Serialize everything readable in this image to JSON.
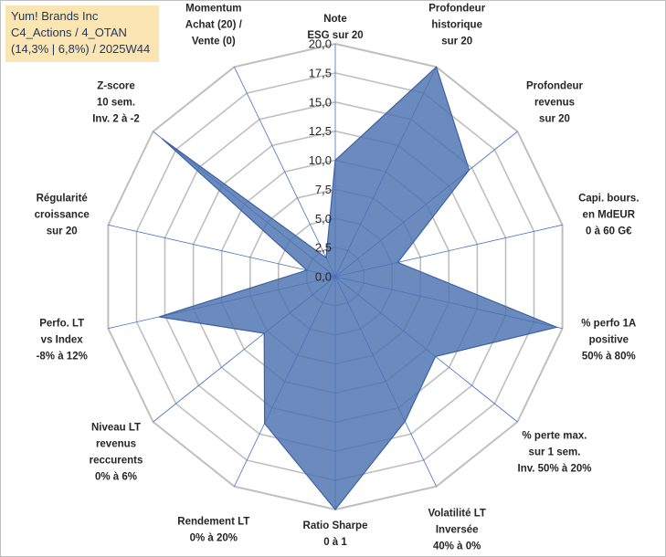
{
  "header": {
    "company": "Yum! Brands Inc",
    "portfolio": "C4_Actions / 4_OTAN",
    "stats": "(14,3% | 6,8%) / 2025W44"
  },
  "colors": {
    "fill": "#4a72b0",
    "stroke": "#3d62a3",
    "grid": "#bfbfbf",
    "spoke": "#4472c4",
    "title_bg": "#fbe5b3"
  },
  "chart_data": {
    "type": "radar",
    "title": "Yum! Brands Inc",
    "r_range": [
      0,
      20
    ],
    "r_ticks": [
      "0,0",
      "2,5",
      "5,0",
      "7,5",
      "10,0",
      "12,5",
      "15,0",
      "17,5",
      "20,0"
    ],
    "axes": [
      [
        "Note",
        "ESG sur 20"
      ],
      [
        "Profondeur",
        "historique",
        "sur 20"
      ],
      [
        "Profondeur",
        "revenus",
        "sur 20"
      ],
      [
        "Capi. bours.",
        "en MdEUR",
        "0 à 60 G€"
      ],
      [
        "% perfo 1A",
        "positive",
        "50% à 80%"
      ],
      [
        "% perte max.",
        "sur 1 sem.",
        "Inv. 50% à 20%"
      ],
      [
        "Volatilité LT",
        "Inversée",
        "40% à 0%"
      ],
      [
        "Ratio Sharpe",
        "0 à 1"
      ],
      [
        "Rendement LT",
        "0% à 20%"
      ],
      [
        "Niveau LT",
        "revenus",
        "reccurents",
        "0% à 6%"
      ],
      [
        "Perfo. LT",
        "vs Index",
        "-8% à 12%"
      ],
      [
        "Régularité",
        "croissance",
        "sur 20"
      ],
      [
        "Z-score",
        "10 sem.",
        "Inv. 2 à -2"
      ],
      [
        "Momentum",
        "Achat (20) /",
        "Vente (0)"
      ]
    ],
    "values": [
      10,
      20,
      14.7,
      5.5,
      19.5,
      11,
      13.8,
      20,
      14,
      7.8,
      15.5,
      2.5,
      19,
      1.8
    ]
  }
}
